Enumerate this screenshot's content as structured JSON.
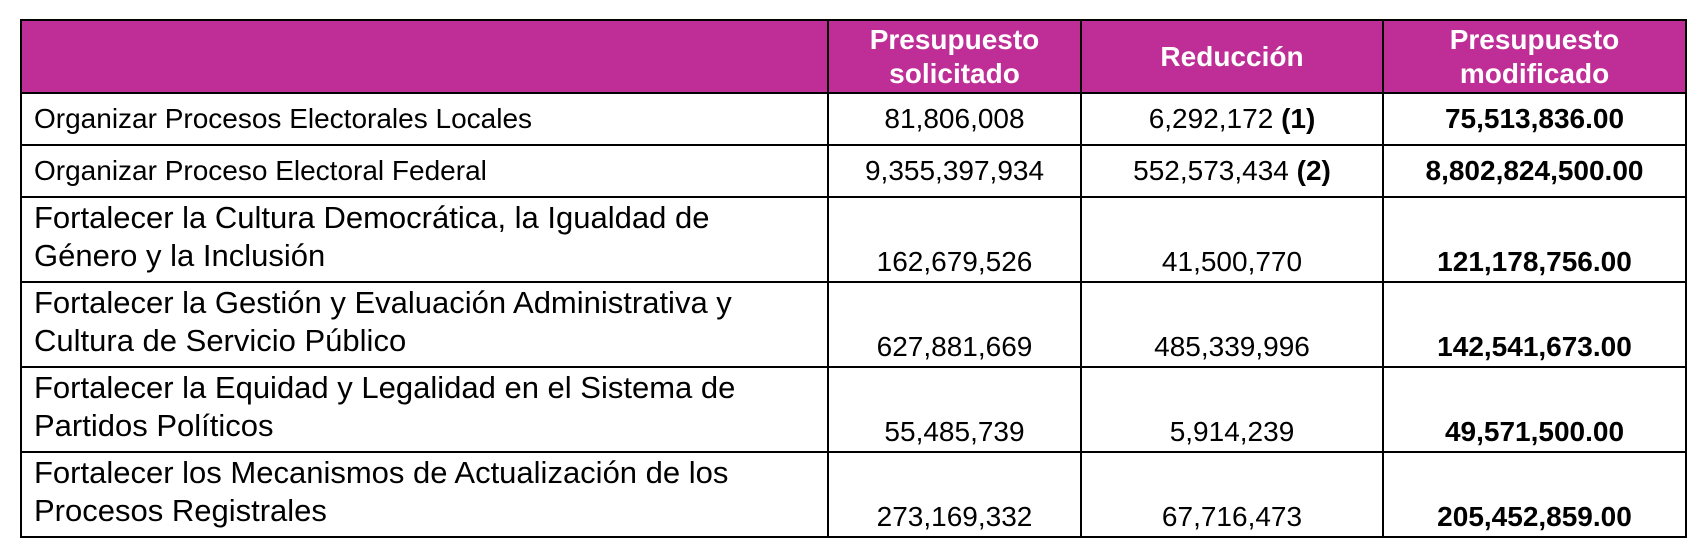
{
  "table": {
    "header": {
      "concept": "",
      "solicitado": "Presupuesto solicitado",
      "reduccion": "Reducción",
      "modificado": "Presupuesto modificado"
    },
    "header_bg_color": "#bf2e96",
    "rows": [
      {
        "concept": "Organizar Procesos Electorales Locales",
        "solicitado": "81,806,008",
        "reduccion": "6,292,172",
        "reduccion_note": "(1)",
        "modificado": "75,513,836.00"
      },
      {
        "concept": "Organizar Proceso Electoral Federal",
        "solicitado": "9,355,397,934",
        "reduccion": "552,573,434",
        "reduccion_note": "(2)",
        "modificado": "8,802,824,500.00"
      },
      {
        "concept": "Fortalecer la Cultura Democrática, la Igualdad de Género y la Inclusión",
        "solicitado": "162,679,526",
        "reduccion": "41,500,770",
        "reduccion_note": "",
        "modificado": "121,178,756.00"
      },
      {
        "concept": "Fortalecer la Gestión y Evaluación Administrativa y Cultura de Servicio Público",
        "solicitado": "627,881,669",
        "reduccion": "485,339,996",
        "reduccion_note": "",
        "modificado": "142,541,673.00"
      },
      {
        "concept": "Fortalecer la Equidad y Legalidad en el Sistema de Partidos Políticos",
        "solicitado": "55,485,739",
        "reduccion": "5,914,239",
        "reduccion_note": "",
        "modificado": "49,571,500.00"
      },
      {
        "concept": "Fortalecer los Mecanismos de Actualización de los Procesos Registrales",
        "solicitado": "273,169,332",
        "reduccion": "67,716,473",
        "reduccion_note": "",
        "modificado": "205,452,859.00"
      }
    ]
  }
}
